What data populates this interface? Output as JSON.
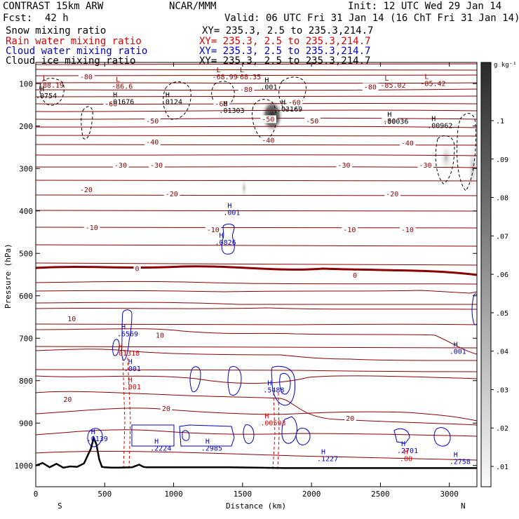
{
  "header": {
    "model": "CONTRAST 15km ARW",
    "org": "NCAR/MMM",
    "init": "Init: 12 UTC Wed 29 Jan 14",
    "fcst_label": "Fcst:",
    "fcst_value": "42 h",
    "valid": "Valid: 06 UTC Fri 31 Jan 14 (16 ChT Fri 31 Jan 14)"
  },
  "fields": [
    {
      "name": "Snow mixing ratio",
      "xy": "XY= 235.3,  2.5 to 235.3,214.7",
      "color": "#000000"
    },
    {
      "name": "Rain water mixing ratio",
      "xy": "XY= 235.3,  2.5 to 235.3,214.7",
      "color": "#dd0000"
    },
    {
      "name": "Cloud water mixing ratio",
      "xy": "XY= 235.3,  2.5 to 235.3,214.7",
      "color": "#0000cc"
    },
    {
      "name": "Cloud ice mixing ratio",
      "xy": "XY= 235.3,  2.5 to 235.3,214.7",
      "color": "#000000"
    }
  ],
  "colorbar": {
    "unit": "g kg⁻¹",
    "ticks": [
      "0.1",
      "0.09",
      "0.08",
      "0.07",
      "0.06",
      "0.05",
      "0.04",
      "0.03",
      "0.02",
      "0.01"
    ],
    "tick_labels": [
      ".1",
      ".09",
      ".08",
      ".07",
      ".06",
      ".05",
      ".04",
      ".03",
      ".02",
      ".01"
    ]
  },
  "chart_data": {
    "type": "contour",
    "xlabel": "Distance (km)",
    "ylabel": "Pressure (hPa)",
    "xlim": [
      0,
      3200
    ],
    "ylim": [
      1050,
      50
    ],
    "xticks": [
      0,
      500,
      1000,
      1500,
      2000,
      2500,
      3000
    ],
    "yticks": [
      100,
      200,
      300,
      400,
      500,
      600,
      700,
      800,
      900,
      1000
    ],
    "x_end_labels": {
      "left": "S",
      "right": "N"
    },
    "colors": {
      "temperature": "#8b0000",
      "rain": "#dd0000",
      "cloud_water": "#0000cc",
      "snow": "#000000",
      "terrain": "#000000"
    },
    "temperature_isotherms": [
      {
        "level": -80,
        "label": "-80",
        "x": 320,
        "p": 88
      },
      {
        "level": -80,
        "label": "-80",
        "x": 2380,
        "p": 112
      },
      {
        "level": -80,
        "label": "-80",
        "x": 1480,
        "p": 118
      },
      {
        "level": -60,
        "label": "-60",
        "x": 500,
        "p": 152
      },
      {
        "level": -60,
        "label": "-60",
        "x": 1300,
        "p": 152
      },
      {
        "level": -60,
        "label": "-60",
        "x": 1830,
        "p": 148
      },
      {
        "level": -50,
        "label": "-50",
        "x": 800,
        "p": 192
      },
      {
        "level": -50,
        "label": "-50",
        "x": 1640,
        "p": 188
      },
      {
        "level": -50,
        "label": "-50",
        "x": 1960,
        "p": 192
      },
      {
        "level": -50,
        "label": "-50",
        "x": 2520,
        "p": 192
      },
      {
        "level": -40,
        "label": "-40",
        "x": 800,
        "p": 242
      },
      {
        "level": -40,
        "label": "-40",
        "x": 1640,
        "p": 238
      },
      {
        "level": -40,
        "label": "-40",
        "x": 2650,
        "p": 244
      },
      {
        "level": -30,
        "label": "-30",
        "x": 570,
        "p": 296
      },
      {
        "level": -30,
        "label": "-30",
        "x": 830,
        "p": 296
      },
      {
        "level": -30,
        "label": "-30",
        "x": 2190,
        "p": 296
      },
      {
        "level": -30,
        "label": "-30",
        "x": 2780,
        "p": 296
      },
      {
        "level": -20,
        "label": "-20",
        "x": 320,
        "p": 354
      },
      {
        "level": -20,
        "label": "-20",
        "x": 940,
        "p": 364
      },
      {
        "level": -20,
        "label": "-20",
        "x": 2540,
        "p": 364
      },
      {
        "level": -10,
        "label": "-10",
        "x": 360,
        "p": 443
      },
      {
        "level": -10,
        "label": "-10",
        "x": 1240,
        "p": 448
      },
      {
        "level": -10,
        "label": "-10",
        "x": 2230,
        "p": 448
      },
      {
        "level": -10,
        "label": "-10",
        "x": 2650,
        "p": 448
      },
      {
        "level": 0,
        "label": "0",
        "x": 720,
        "p": 540
      },
      {
        "level": 0,
        "label": "0",
        "x": 2300,
        "p": 556
      },
      {
        "level": 10,
        "label": "10",
        "x": 230,
        "p": 658
      },
      {
        "level": 10,
        "label": "10",
        "x": 870,
        "p": 697
      },
      {
        "level": 20,
        "label": "20",
        "x": 200,
        "p": 848
      },
      {
        "level": 20,
        "label": "20",
        "x": 915,
        "p": 870
      },
      {
        "level": 20,
        "label": "20",
        "x": 2250,
        "p": 893
      }
    ],
    "extrema_labels": [
      {
        "kind": "L",
        "value": "-88.19",
        "x": 20,
        "p": 108,
        "color": "#8b0000"
      },
      {
        "kind": "L",
        "value": "-86.6",
        "x": 550,
        "p": 110,
        "color": "#8b0000"
      },
      {
        "kind": "L",
        "value": "-68.99",
        "x": 1280,
        "p": 88,
        "color": "#8b0000"
      },
      {
        "kind": "L",
        "value": "-68.35",
        "x": 1450,
        "p": 88,
        "color": "#8b0000"
      },
      {
        "kind": "L",
        "value": "-85.02",
        "x": 2500,
        "p": 108,
        "color": "#8b0000"
      },
      {
        "kind": "L",
        "value": "-85.42",
        "x": 2790,
        "p": 104,
        "color": "#8b0000"
      },
      {
        "kind": "H",
        "value": ".0754",
        "x": 0,
        "p": 133,
        "color": "#000000"
      },
      {
        "kind": "H",
        "value": ".01676",
        "x": 530,
        "p": 147,
        "color": "#000000"
      },
      {
        "kind": "H",
        "value": ".0124",
        "x": 910,
        "p": 147,
        "color": "#000000"
      },
      {
        "kind": "H",
        "value": ".01303",
        "x": 1330,
        "p": 167,
        "color": "#000000"
      },
      {
        "kind": "H",
        "value": ".03169",
        "x": 1750,
        "p": 164,
        "color": "#000000"
      },
      {
        "kind": "H",
        "value": ".001",
        "x": 1630,
        "p": 112,
        "color": "#000000"
      },
      {
        "kind": "H",
        "value": ".00036",
        "x": 2520,
        "p": 193,
        "color": "#000000"
      },
      {
        "kind": "H",
        "value": ".00962",
        "x": 2840,
        "p": 203,
        "color": "#000000"
      },
      {
        "kind": "H",
        "value": ".001",
        "x": 1360,
        "p": 408,
        "color": "#0000cc"
      },
      {
        "kind": "H",
        "value": ".0826",
        "x": 1300,
        "p": 478,
        "color": "#0000cc"
      },
      {
        "kind": "H",
        "value": ".6569",
        "x": 590,
        "p": 694,
        "color": "#0000cc"
      },
      {
        "kind": "H",
        "value": ".01318",
        "x": 570,
        "p": 739,
        "color": "#dd0000"
      },
      {
        "kind": "H",
        "value": ".001",
        "x": 640,
        "p": 776,
        "color": "#0000cc"
      },
      {
        "kind": "H",
        "value": ".001",
        "x": 640,
        "p": 819,
        "color": "#dd0000"
      },
      {
        "kind": "H",
        "value": ".5488",
        "x": 1650,
        "p": 826,
        "color": "#0000cc"
      },
      {
        "kind": "H",
        "value": ".00593",
        "x": 1630,
        "p": 904,
        "color": "#dd0000"
      },
      {
        "kind": "H",
        "value": ".0139",
        "x": 370,
        "p": 941,
        "color": "#0000cc"
      },
      {
        "kind": "H",
        "value": ".2224",
        "x": 830,
        "p": 963,
        "color": "#0000cc"
      },
      {
        "kind": "H",
        "value": ".2985",
        "x": 1200,
        "p": 963,
        "color": "#0000cc"
      },
      {
        "kind": "H",
        "value": ".1227",
        "x": 2040,
        "p": 988,
        "color": "#0000cc"
      },
      {
        "kind": "H",
        "value": ".2701",
        "x": 2620,
        "p": 969,
        "color": "#0000cc"
      },
      {
        "kind": "H",
        "value": ".00",
        "x": 2640,
        "p": 988,
        "color": "#dd0000"
      },
      {
        "kind": "H",
        "value": ".2758",
        "x": 3000,
        "p": 995,
        "color": "#0000cc"
      },
      {
        "kind": "H",
        "value": ".001",
        "x": 3000,
        "p": 735,
        "color": "#0000cc"
      }
    ],
    "terrain": {
      "x": [
        0,
        50,
        100,
        150,
        200,
        250,
        300,
        350,
        400,
        420,
        440,
        460,
        480,
        500,
        550,
        600,
        700,
        750,
        780,
        800,
        900,
        1000,
        1200,
        1400,
        1600,
        1800,
        2000,
        2200,
        2400,
        2600,
        2800,
        3000,
        3200
      ],
      "p": [
        1000,
        994,
        1004,
        996,
        1005,
        1002,
        1003,
        995,
        960,
        935,
        950,
        985,
        1003,
        1004,
        1005,
        1005,
        1004,
        998,
        1003,
        1004,
        1004,
        1004,
        1004,
        1004,
        1005,
        1006,
        1006,
        1006,
        1006,
        1006,
        1006,
        1006,
        1006
      ]
    }
  }
}
